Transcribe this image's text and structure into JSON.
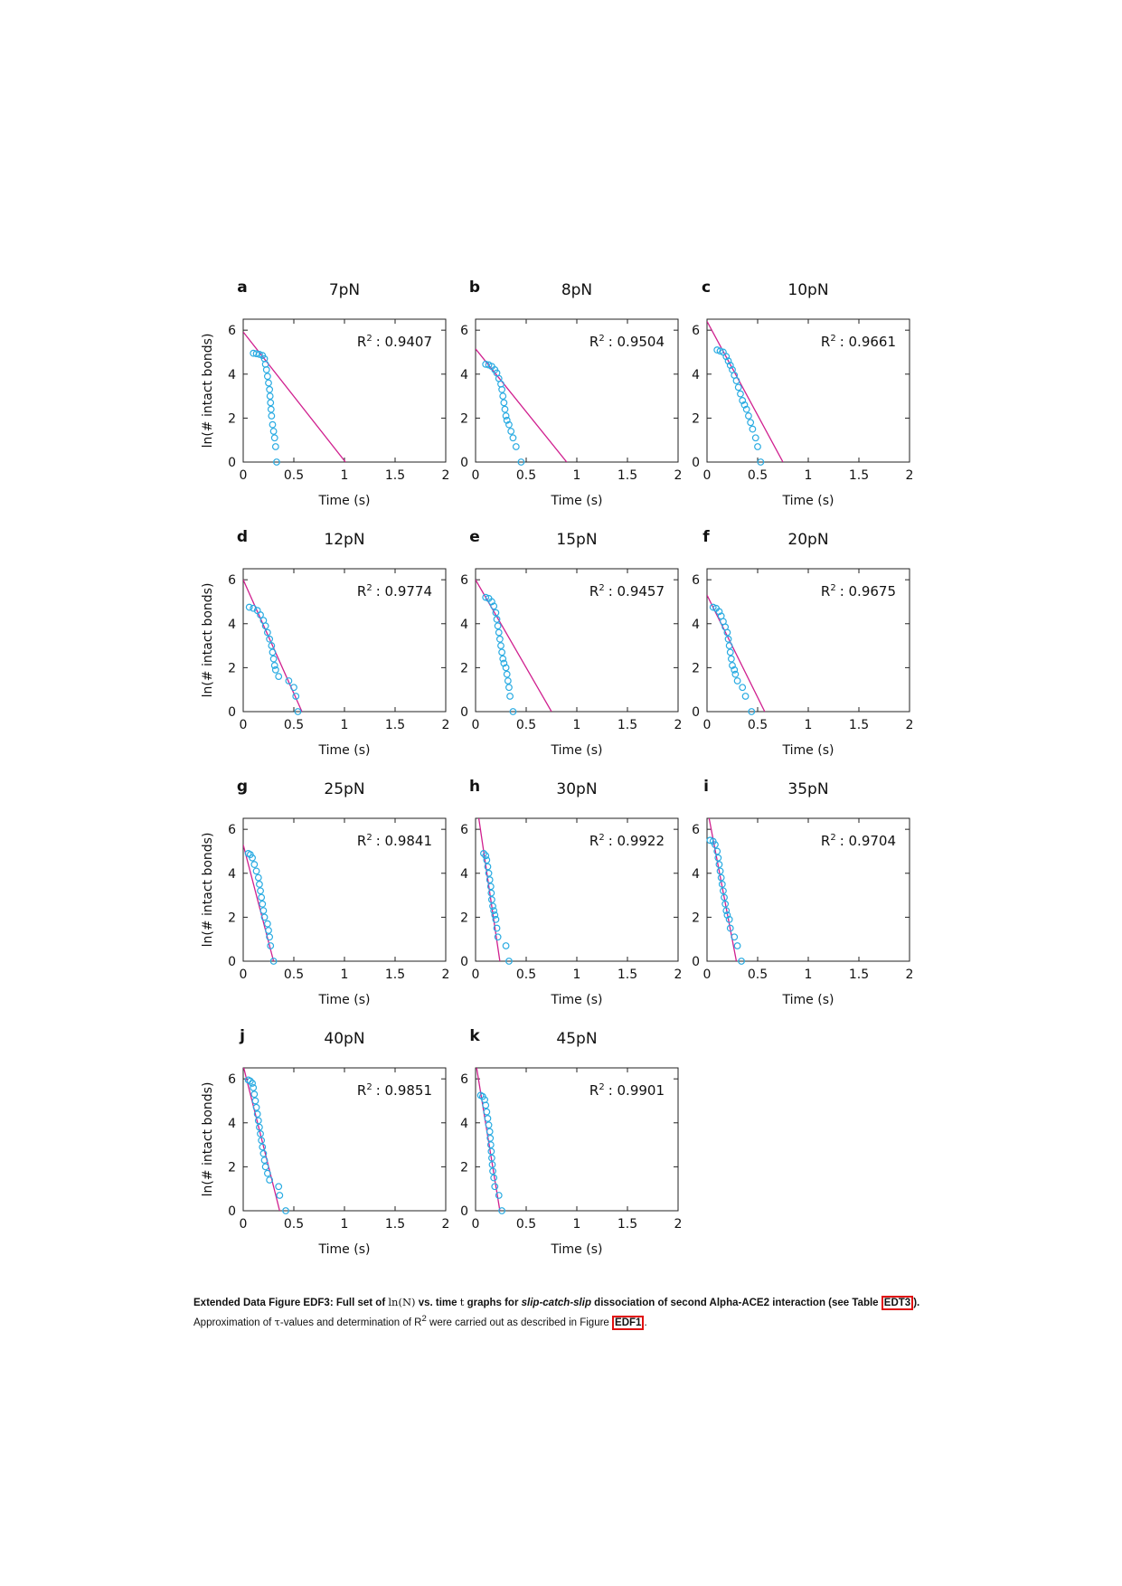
{
  "chart_data": [
    {
      "type": "scatter",
      "letter": "a",
      "title": "7pN",
      "r2_label": "R",
      "r2_sup": "2",
      "r2_value": ": 0.9407",
      "xlabel": "Time (s)",
      "ylabel": "ln(# intact bonds)",
      "xlim": [
        0,
        2
      ],
      "ylim": [
        0,
        6.5
      ],
      "xticks": [
        "0",
        "0.5",
        "1",
        "1.5",
        "2"
      ],
      "yticks": [
        "0",
        "2",
        "4",
        "6"
      ],
      "fit": {
        "intercept": 5.92,
        "x_intercept": 1.01
      },
      "points": [
        [
          0.1,
          4.95
        ],
        [
          0.13,
          4.93
        ],
        [
          0.16,
          4.9
        ],
        [
          0.19,
          4.85
        ],
        [
          0.21,
          4.7
        ],
        [
          0.22,
          4.45
        ],
        [
          0.23,
          4.2
        ],
        [
          0.24,
          3.9
        ],
        [
          0.25,
          3.6
        ],
        [
          0.26,
          3.3
        ],
        [
          0.265,
          3.0
        ],
        [
          0.27,
          2.7
        ],
        [
          0.275,
          2.4
        ],
        [
          0.28,
          2.1
        ],
        [
          0.29,
          1.7
        ],
        [
          0.3,
          1.4
        ],
        [
          0.31,
          1.1
        ],
        [
          0.32,
          0.7
        ],
        [
          0.33,
          0.0
        ]
      ]
    },
    {
      "type": "scatter",
      "letter": "b",
      "title": "8pN",
      "r2_label": "R",
      "r2_sup": "2",
      "r2_value": ": 0.9504",
      "xlabel": "Time (s)",
      "ylabel": "",
      "xlim": [
        0,
        2
      ],
      "ylim": [
        0,
        6.5
      ],
      "xticks": [
        "0",
        "0.5",
        "1",
        "1.5",
        "2"
      ],
      "yticks": [
        "0",
        "2",
        "4",
        "6"
      ],
      "fit": {
        "intercept": 5.15,
        "x_intercept": 0.9
      },
      "points": [
        [
          0.1,
          4.45
        ],
        [
          0.13,
          4.42
        ],
        [
          0.16,
          4.35
        ],
        [
          0.19,
          4.2
        ],
        [
          0.21,
          4.05
        ],
        [
          0.23,
          3.8
        ],
        [
          0.25,
          3.55
        ],
        [
          0.26,
          3.3
        ],
        [
          0.27,
          3.0
        ],
        [
          0.28,
          2.7
        ],
        [
          0.29,
          2.4
        ],
        [
          0.3,
          2.1
        ],
        [
          0.31,
          1.9
        ],
        [
          0.33,
          1.7
        ],
        [
          0.35,
          1.4
        ],
        [
          0.37,
          1.1
        ],
        [
          0.4,
          0.7
        ],
        [
          0.45,
          0.0
        ]
      ]
    },
    {
      "type": "scatter",
      "letter": "c",
      "title": "10pN",
      "r2_label": "R",
      "r2_sup": "2",
      "r2_value": ": 0.9661",
      "xlabel": "Time (s)",
      "ylabel": "",
      "xlim": [
        0,
        2
      ],
      "ylim": [
        0,
        6.5
      ],
      "xticks": [
        "0",
        "0.5",
        "1",
        "1.5",
        "2"
      ],
      "yticks": [
        "0",
        "2",
        "4",
        "6"
      ],
      "fit": {
        "intercept": 6.4,
        "x_intercept": 0.75
      },
      "points": [
        [
          0.1,
          5.1
        ],
        [
          0.13,
          5.05
        ],
        [
          0.16,
          5.0
        ],
        [
          0.19,
          4.8
        ],
        [
          0.21,
          4.6
        ],
        [
          0.23,
          4.4
        ],
        [
          0.25,
          4.2
        ],
        [
          0.27,
          3.95
        ],
        [
          0.29,
          3.7
        ],
        [
          0.31,
          3.4
        ],
        [
          0.33,
          3.1
        ],
        [
          0.35,
          2.8
        ],
        [
          0.37,
          2.6
        ],
        [
          0.39,
          2.4
        ],
        [
          0.41,
          2.1
        ],
        [
          0.43,
          1.8
        ],
        [
          0.45,
          1.5
        ],
        [
          0.48,
          1.1
        ],
        [
          0.5,
          0.7
        ],
        [
          0.53,
          0.0
        ]
      ]
    },
    {
      "type": "scatter",
      "letter": "d",
      "title": "12pN",
      "r2_label": "R",
      "r2_sup": "2",
      "r2_value": ": 0.9774",
      "xlabel": "Time (s)",
      "ylabel": "ln(# intact bonds)",
      "xlim": [
        0,
        2
      ],
      "ylim": [
        0,
        6.5
      ],
      "xticks": [
        "0",
        "0.5",
        "1",
        "1.5",
        "2"
      ],
      "yticks": [
        "0",
        "2",
        "4",
        "6"
      ],
      "fit": {
        "intercept": 6.0,
        "x_intercept": 0.58
      },
      "points": [
        [
          0.06,
          4.75
        ],
        [
          0.1,
          4.7
        ],
        [
          0.14,
          4.6
        ],
        [
          0.17,
          4.4
        ],
        [
          0.2,
          4.15
        ],
        [
          0.22,
          3.9
        ],
        [
          0.24,
          3.6
        ],
        [
          0.26,
          3.3
        ],
        [
          0.28,
          3.0
        ],
        [
          0.29,
          2.7
        ],
        [
          0.3,
          2.4
        ],
        [
          0.31,
          2.1
        ],
        [
          0.32,
          1.9
        ],
        [
          0.35,
          1.6
        ],
        [
          0.45,
          1.4
        ],
        [
          0.5,
          1.1
        ],
        [
          0.52,
          0.7
        ],
        [
          0.54,
          0.0
        ]
      ]
    },
    {
      "type": "scatter",
      "letter": "e",
      "title": "15pN",
      "r2_label": "R",
      "r2_sup": "2",
      "r2_value": ": 0.9457",
      "xlabel": "Time (s)",
      "ylabel": "",
      "xlim": [
        0,
        2
      ],
      "ylim": [
        0,
        6.5
      ],
      "xticks": [
        "0",
        "0.5",
        "1",
        "1.5",
        "2"
      ],
      "yticks": [
        "0",
        "2",
        "4",
        "6"
      ],
      "fit": {
        "intercept": 6.0,
        "x_intercept": 0.75
      },
      "points": [
        [
          0.1,
          5.2
        ],
        [
          0.13,
          5.15
        ],
        [
          0.16,
          5.0
        ],
        [
          0.18,
          4.8
        ],
        [
          0.2,
          4.5
        ],
        [
          0.21,
          4.2
        ],
        [
          0.22,
          3.9
        ],
        [
          0.23,
          3.6
        ],
        [
          0.24,
          3.3
        ],
        [
          0.25,
          3.0
        ],
        [
          0.26,
          2.7
        ],
        [
          0.27,
          2.4
        ],
        [
          0.28,
          2.2
        ],
        [
          0.3,
          2.0
        ],
        [
          0.31,
          1.7
        ],
        [
          0.32,
          1.4
        ],
        [
          0.33,
          1.1
        ],
        [
          0.34,
          0.7
        ],
        [
          0.37,
          0.0
        ]
      ]
    },
    {
      "type": "scatter",
      "letter": "f",
      "title": "20pN",
      "r2_label": "R",
      "r2_sup": "2",
      "r2_value": ": 0.9675",
      "xlabel": "Time (s)",
      "ylabel": "",
      "xlim": [
        0,
        2
      ],
      "ylim": [
        0,
        6.5
      ],
      "xticks": [
        "0",
        "0.5",
        "1",
        "1.5",
        "2"
      ],
      "yticks": [
        "0",
        "2",
        "4",
        "6"
      ],
      "fit": {
        "intercept": 5.3,
        "x_intercept": 0.57
      },
      "points": [
        [
          0.06,
          4.75
        ],
        [
          0.09,
          4.7
        ],
        [
          0.12,
          4.55
        ],
        [
          0.14,
          4.35
        ],
        [
          0.16,
          4.1
        ],
        [
          0.18,
          3.85
        ],
        [
          0.2,
          3.6
        ],
        [
          0.21,
          3.3
        ],
        [
          0.22,
          3.0
        ],
        [
          0.23,
          2.7
        ],
        [
          0.24,
          2.4
        ],
        [
          0.25,
          2.1
        ],
        [
          0.27,
          1.9
        ],
        [
          0.28,
          1.7
        ],
        [
          0.3,
          1.4
        ],
        [
          0.35,
          1.1
        ],
        [
          0.38,
          0.7
        ],
        [
          0.44,
          0.0
        ]
      ]
    },
    {
      "type": "scatter",
      "letter": "g",
      "title": "25pN",
      "r2_label": "R",
      "r2_sup": "2",
      "r2_value": ": 0.9841",
      "xlabel": "Time (s)",
      "ylabel": "ln(# intact bonds)",
      "xlim": [
        0,
        2
      ],
      "ylim": [
        0,
        6.5
      ],
      "xticks": [
        "0",
        "0.5",
        "1",
        "1.5",
        "2"
      ],
      "yticks": [
        "0",
        "2",
        "4",
        "6"
      ],
      "fit": {
        "intercept": 5.3,
        "x_intercept": 0.3
      },
      "points": [
        [
          0.05,
          4.9
        ],
        [
          0.07,
          4.85
        ],
        [
          0.09,
          4.7
        ],
        [
          0.11,
          4.4
        ],
        [
          0.13,
          4.1
        ],
        [
          0.15,
          3.8
        ],
        [
          0.16,
          3.5
        ],
        [
          0.17,
          3.2
        ],
        [
          0.18,
          2.9
        ],
        [
          0.19,
          2.6
        ],
        [
          0.2,
          2.3
        ],
        [
          0.21,
          2.0
        ],
        [
          0.24,
          1.7
        ],
        [
          0.25,
          1.4
        ],
        [
          0.26,
          1.1
        ],
        [
          0.27,
          0.7
        ],
        [
          0.3,
          0.0
        ]
      ]
    },
    {
      "type": "scatter",
      "letter": "h",
      "title": "30pN",
      "r2_label": "R",
      "r2_sup": "2",
      "r2_value": ": 0.9922",
      "xlabel": "Time (s)",
      "ylabel": "",
      "xlim": [
        0,
        2
      ],
      "ylim": [
        0,
        6.5
      ],
      "xticks": [
        "0",
        "0.5",
        "1",
        "1.5",
        "2"
      ],
      "yticks": [
        "0",
        "2",
        "4",
        "6"
      ],
      "fit": {
        "intercept": 7.5,
        "x_intercept": 0.24
      },
      "points": [
        [
          0.08,
          4.9
        ],
        [
          0.1,
          4.8
        ],
        [
          0.11,
          4.6
        ],
        [
          0.12,
          4.3
        ],
        [
          0.13,
          4.0
        ],
        [
          0.14,
          3.7
        ],
        [
          0.15,
          3.4
        ],
        [
          0.155,
          3.1
        ],
        [
          0.16,
          2.8
        ],
        [
          0.17,
          2.5
        ],
        [
          0.18,
          2.3
        ],
        [
          0.19,
          2.1
        ],
        [
          0.2,
          1.9
        ],
        [
          0.21,
          1.5
        ],
        [
          0.22,
          1.1
        ],
        [
          0.3,
          0.7
        ],
        [
          0.33,
          0.0
        ]
      ]
    },
    {
      "type": "scatter",
      "letter": "i",
      "title": "35pN",
      "r2_label": "R",
      "r2_sup": "2",
      "r2_value": ": 0.9704",
      "xlabel": "Time (s)",
      "ylabel": "",
      "xlim": [
        0,
        2
      ],
      "ylim": [
        0,
        6.5
      ],
      "xticks": [
        "0",
        "0.5",
        "1",
        "1.5",
        "2"
      ],
      "yticks": [
        "0",
        "2",
        "4",
        "6"
      ],
      "fit": {
        "intercept": 7.0,
        "x_intercept": 0.29
      },
      "points": [
        [
          0.03,
          5.5
        ],
        [
          0.06,
          5.45
        ],
        [
          0.08,
          5.3
        ],
        [
          0.1,
          5.0
        ],
        [
          0.11,
          4.7
        ],
        [
          0.12,
          4.4
        ],
        [
          0.13,
          4.1
        ],
        [
          0.14,
          3.8
        ],
        [
          0.15,
          3.5
        ],
        [
          0.16,
          3.2
        ],
        [
          0.17,
          2.9
        ],
        [
          0.18,
          2.6
        ],
        [
          0.19,
          2.3
        ],
        [
          0.2,
          2.1
        ],
        [
          0.22,
          1.9
        ],
        [
          0.23,
          1.5
        ],
        [
          0.27,
          1.1
        ],
        [
          0.3,
          0.7
        ],
        [
          0.34,
          0.0
        ]
      ]
    },
    {
      "type": "scatter",
      "letter": "j",
      "title": "40pN",
      "r2_label": "R",
      "r2_sup": "2",
      "r2_value": ": 0.9851",
      "xlabel": "Time (s)",
      "ylabel": "ln(# intact bonds)",
      "xlim": [
        0,
        2
      ],
      "ylim": [
        0,
        6.5
      ],
      "xticks": [
        "0",
        "0.5",
        "1",
        "1.5",
        "2"
      ],
      "yticks": [
        "0",
        "2",
        "4",
        "6"
      ],
      "fit": {
        "intercept": 6.6,
        "x_intercept": 0.36
      },
      "points": [
        [
          0.05,
          5.95
        ],
        [
          0.07,
          5.9
        ],
        [
          0.09,
          5.8
        ],
        [
          0.1,
          5.6
        ],
        [
          0.11,
          5.3
        ],
        [
          0.12,
          5.0
        ],
        [
          0.13,
          4.7
        ],
        [
          0.14,
          4.4
        ],
        [
          0.15,
          4.1
        ],
        [
          0.16,
          3.8
        ],
        [
          0.17,
          3.5
        ],
        [
          0.18,
          3.2
        ],
        [
          0.19,
          2.9
        ],
        [
          0.2,
          2.6
        ],
        [
          0.21,
          2.3
        ],
        [
          0.22,
          2.0
        ],
        [
          0.24,
          1.7
        ],
        [
          0.26,
          1.4
        ],
        [
          0.35,
          1.1
        ],
        [
          0.36,
          0.7
        ],
        [
          0.42,
          0.0
        ]
      ]
    },
    {
      "type": "scatter",
      "letter": "k",
      "title": "45pN",
      "r2_label": "R",
      "r2_sup": "2",
      "r2_value": ": 0.9901",
      "xlabel": "Time (s)",
      "ylabel": "",
      "xlim": [
        0,
        2
      ],
      "ylim": [
        0,
        6.5
      ],
      "xticks": [
        "0",
        "0.5",
        "1",
        "1.5",
        "2"
      ],
      "yticks": [
        "0",
        "2",
        "4",
        "6"
      ],
      "fit": {
        "intercept": 6.8,
        "x_intercept": 0.24
      },
      "points": [
        [
          0.05,
          5.25
        ],
        [
          0.07,
          5.2
        ],
        [
          0.09,
          5.05
        ],
        [
          0.1,
          4.8
        ],
        [
          0.11,
          4.5
        ],
        [
          0.12,
          4.2
        ],
        [
          0.13,
          3.9
        ],
        [
          0.14,
          3.6
        ],
        [
          0.145,
          3.3
        ],
        [
          0.15,
          3.0
        ],
        [
          0.155,
          2.7
        ],
        [
          0.16,
          2.4
        ],
        [
          0.165,
          2.1
        ],
        [
          0.17,
          1.8
        ],
        [
          0.18,
          1.5
        ],
        [
          0.19,
          1.1
        ],
        [
          0.23,
          0.7
        ],
        [
          0.26,
          0.0
        ]
      ]
    }
  ],
  "colors": {
    "points": "#29abe2",
    "fit": "#d0208f",
    "axis": "#222222"
  },
  "caption": {
    "label": "Extended Data Figure EDF3",
    "colon": ":",
    "bold1": "Full set of",
    "math1": "ln(N)",
    "bold2": "vs. time",
    "math2": "t",
    "bold3": "graphs for",
    "italic": "slip-catch-slip",
    "bold4": "dissociation of second Alpha-ACE2 interaction (see Table",
    "ref1": "EDT3",
    "after_ref1": ").",
    "plain1": "Approximation of",
    "math3": "τ",
    "plain2": "-values and determination of R",
    "sup": "2",
    "plain3": "were carried out as described in Figure",
    "ref2": "EDF1",
    "plain4": "."
  }
}
